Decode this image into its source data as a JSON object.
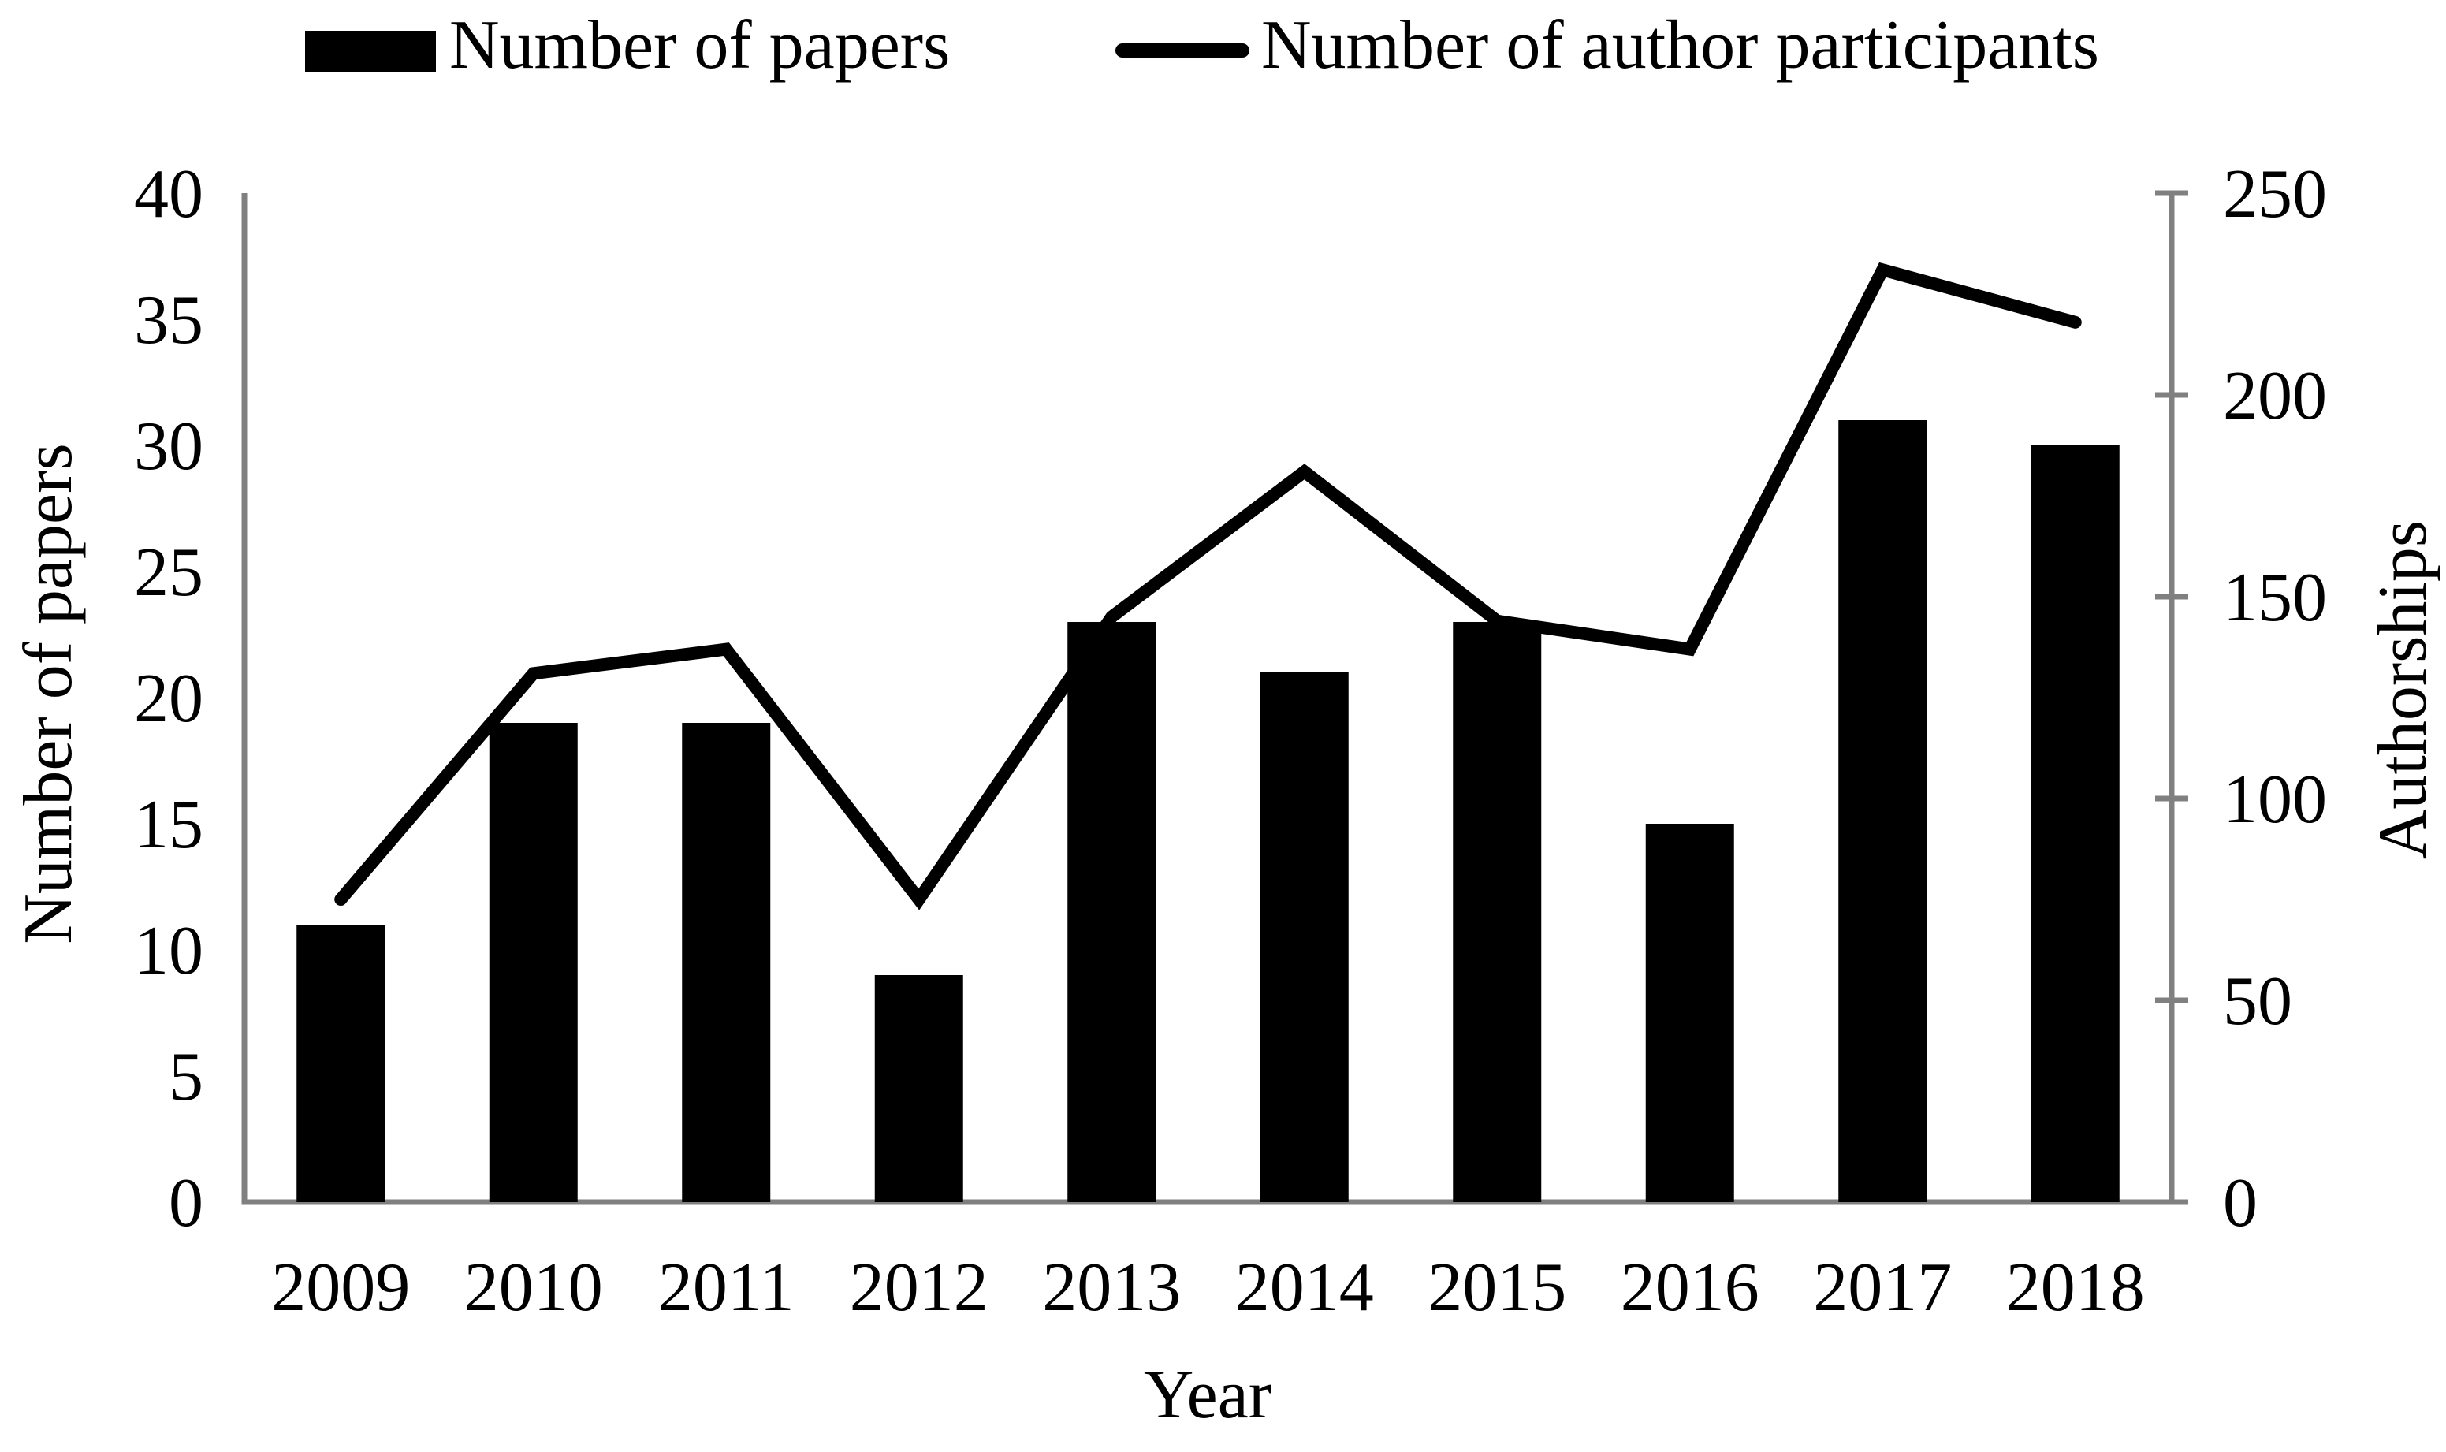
{
  "legend": {
    "items": [
      {
        "label": "Number of papers",
        "swatch": "bar-swatch"
      },
      {
        "label": "Number of author participants",
        "swatch": "line-swatch"
      }
    ]
  },
  "chart_data": {
    "type": "bar",
    "subtype": "bar+line combo, dual axis",
    "categories": [
      "2009",
      "2010",
      "2011",
      "2012",
      "2013",
      "2014",
      "2015",
      "2016",
      "2017",
      "2018"
    ],
    "series": [
      {
        "name": "Number of papers",
        "type": "bar",
        "axis": "left",
        "values": [
          11,
          19,
          19,
          9,
          23,
          21,
          23,
          15,
          31,
          30
        ]
      },
      {
        "name": "Number of author participants",
        "type": "line",
        "axis": "right",
        "values": [
          75,
          131,
          137,
          75,
          145,
          181,
          144,
          137,
          231,
          218
        ]
      }
    ],
    "left_axis": {
      "title": "Number of papers",
      "min": 0,
      "max": 40,
      "step": 5
    },
    "right_axis": {
      "title": "Authorships",
      "min": 0,
      "max": 250,
      "step": 50
    },
    "x_axis": {
      "title": "Year"
    },
    "legend_position": "top",
    "grid": false,
    "colors": {
      "bar": "#000000",
      "line": "#000000",
      "axis_line": "#808080",
      "text": "#000000",
      "background": "#ffffff"
    }
  }
}
